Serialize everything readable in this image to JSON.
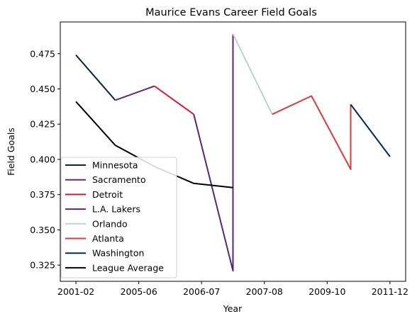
{
  "chart_data": {
    "type": "line",
    "title": "Maurice Evans  Career Field Goals",
    "xlabel": "Year",
    "ylabel": "Field Goals",
    "x_ticks": [
      "2001-02",
      "2005-06",
      "2006-07",
      "2007-08",
      "2009-10",
      "2011-12"
    ],
    "y_ticks": [
      "0.325",
      "0.350",
      "0.375",
      "0.400",
      "0.425",
      "0.450",
      "0.475"
    ],
    "ylim": [
      0.3135,
      0.4975
    ],
    "xlim": [
      -0.4,
      8.4
    ],
    "grid": false,
    "legend_position": "lower left",
    "series": [
      {
        "name": "Minnesota",
        "color": "#0c2340",
        "points": [
          [
            0,
            0.474
          ],
          [
            1,
            0.442
          ]
        ]
      },
      {
        "name": "Sacramento",
        "color": "#5a2d81",
        "points": [
          [
            1,
            0.442
          ],
          [
            2,
            0.452
          ]
        ]
      },
      {
        "name": "Detroit",
        "color": "#e31837",
        "points": [
          [
            2,
            0.452
          ],
          [
            3,
            0.432
          ]
        ]
      },
      {
        "name": "L.A. Lakers",
        "color": "#552583",
        "points": [
          [
            3,
            0.432
          ],
          [
            4,
            0.321
          ],
          [
            4,
            0.489
          ]
        ]
      },
      {
        "name": "Orlando",
        "color": "#c4ced4",
        "points": [
          [
            4,
            0.489
          ],
          [
            5,
            0.432
          ]
        ]
      },
      {
        "name": "Atlanta",
        "color": "#e03a3e",
        "points": [
          [
            5,
            0.432
          ],
          [
            6,
            0.445
          ],
          [
            7,
            0.393
          ],
          [
            7,
            0.439
          ]
        ]
      },
      {
        "name": "Washington",
        "color": "#002b5c",
        "points": [
          [
            7,
            0.439
          ],
          [
            8,
            0.402
          ]
        ]
      },
      {
        "name": "League Average",
        "color": "#000000",
        "points": [
          [
            0,
            0.441
          ],
          [
            1,
            0.41
          ],
          [
            2,
            0.395
          ],
          [
            3,
            0.383
          ],
          [
            4,
            0.38
          ]
        ]
      }
    ]
  }
}
